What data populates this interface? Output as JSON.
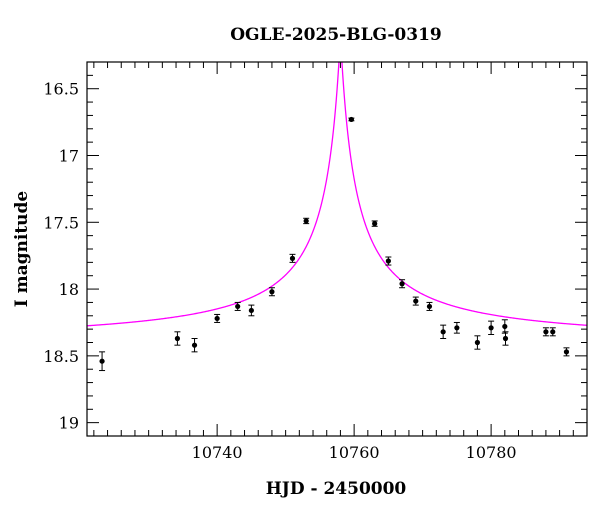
{
  "chart_data": {
    "type": "scatter",
    "title": "OGLE-2025-BLG-0319",
    "xlabel": "HJD - 2450000",
    "ylabel": "I magnitude",
    "xlim": [
      10721,
      10794
    ],
    "ylim": [
      19.1,
      16.3
    ],
    "y_inverted": true,
    "x_ticks": [
      10740,
      10760,
      10780
    ],
    "y_ticks": [
      16.5,
      17,
      17.5,
      18,
      18.5,
      19
    ],
    "y_tick_labels": [
      "16.5",
      "17",
      "17.5",
      "18",
      "18.5",
      "19"
    ],
    "x_tick_labels": [
      "10740",
      "10760",
      "10780"
    ],
    "grid": false,
    "colors": {
      "model": "#ff00ff",
      "points": "#000000",
      "axes": "#000000"
    },
    "series": [
      {
        "kind": "points_with_errorbars",
        "points": [
          {
            "x": 10723.2,
            "y": 18.54,
            "err": 0.07
          },
          {
            "x": 10734.2,
            "y": 18.37,
            "err": 0.05
          },
          {
            "x": 10736.7,
            "y": 18.42,
            "err": 0.05
          },
          {
            "x": 10740.0,
            "y": 18.22,
            "err": 0.03
          },
          {
            "x": 10743.0,
            "y": 18.13,
            "err": 0.03
          },
          {
            "x": 10745.0,
            "y": 18.16,
            "err": 0.04
          },
          {
            "x": 10748.0,
            "y": 18.02,
            "err": 0.03
          },
          {
            "x": 10751.0,
            "y": 17.77,
            "err": 0.03
          },
          {
            "x": 10753.0,
            "y": 17.49,
            "err": 0.02
          },
          {
            "x": 10759.6,
            "y": 16.73,
            "err": 0.01
          },
          {
            "x": 10763.0,
            "y": 17.51,
            "err": 0.02
          },
          {
            "x": 10765.0,
            "y": 17.79,
            "err": 0.03
          },
          {
            "x": 10767.0,
            "y": 17.96,
            "err": 0.03
          },
          {
            "x": 10769.0,
            "y": 18.09,
            "err": 0.03
          },
          {
            "x": 10771.0,
            "y": 18.13,
            "err": 0.03
          },
          {
            "x": 10773.0,
            "y": 18.32,
            "err": 0.05
          },
          {
            "x": 10775.0,
            "y": 18.29,
            "err": 0.04
          },
          {
            "x": 10778.0,
            "y": 18.4,
            "err": 0.05
          },
          {
            "x": 10780.0,
            "y": 18.29,
            "err": 0.05
          },
          {
            "x": 10782.0,
            "y": 18.28,
            "err": 0.05
          },
          {
            "x": 10782.1,
            "y": 18.37,
            "err": 0.05
          },
          {
            "x": 10788.0,
            "y": 18.32,
            "err": 0.03
          },
          {
            "x": 10789.0,
            "y": 18.32,
            "err": 0.03
          },
          {
            "x": 10791.0,
            "y": 18.47,
            "err": 0.03
          }
        ]
      },
      {
        "kind": "model_curve",
        "type": "line",
        "t0": 10758.0,
        "peak_mag": 16.1,
        "baseline_mag": 18.41,
        "half_width_days": 2.3,
        "x_range": [
          10721,
          10794
        ]
      }
    ]
  }
}
